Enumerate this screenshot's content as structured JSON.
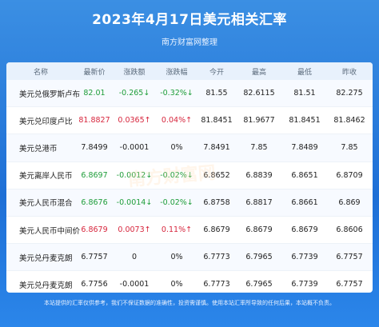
{
  "title": "2023年4月17日美元相关汇率",
  "subtitle": "南方财富网整理",
  "columns": [
    "名称",
    "最新价",
    "涨跌额",
    "涨跌幅",
    "今开",
    "最高",
    "最低",
    "昨收"
  ],
  "rows": [
    {
      "name": "美元兑俄罗斯卢布",
      "last": "82.01",
      "chg": "-0.265↓",
      "pct": "-0.32%↓",
      "open": "81.55",
      "high": "82.6115",
      "low": "81.51",
      "prev": "82.275",
      "trend": "down"
    },
    {
      "name": "美元兑印度卢比",
      "last": "81.8827",
      "chg": "0.0365↑",
      "pct": "0.04%↑",
      "open": "81.8451",
      "high": "81.9677",
      "low": "81.8451",
      "prev": "81.8462",
      "trend": "up"
    },
    {
      "name": "美元兑港币",
      "last": "7.8499",
      "chg": "-0.0001",
      "pct": "0%",
      "open": "7.8491",
      "high": "7.85",
      "low": "7.8489",
      "prev": "7.85",
      "trend": "flat"
    },
    {
      "name": "美元离岸人民币",
      "last": "6.8697",
      "chg": "-0.0012↓",
      "pct": "-0.02%↓",
      "open": "6.8652",
      "high": "6.8839",
      "low": "6.8651",
      "prev": "6.8709",
      "trend": "down"
    },
    {
      "name": "美元人民币混合",
      "last": "6.8676",
      "chg": "-0.0014↓",
      "pct": "-0.02%↓",
      "open": "6.8758",
      "high": "6.8817",
      "low": "6.8661",
      "prev": "6.869",
      "trend": "down"
    },
    {
      "name": "美元人民币中间价",
      "last": "6.8679",
      "chg": "0.0073↑",
      "pct": "0.11%↑",
      "open": "6.8679",
      "high": "6.8679",
      "low": "6.8679",
      "prev": "6.8606",
      "trend": "up"
    },
    {
      "name": "美元兑丹麦克朗",
      "last": "6.7757",
      "chg": "0",
      "pct": "0%",
      "open": "6.7773",
      "high": "6.7965",
      "low": "6.7739",
      "prev": "6.7757",
      "trend": "flat"
    },
    {
      "name": "美元兑丹麦克朗",
      "last": "6.7756",
      "chg": "-0.0001",
      "pct": "0%",
      "open": "6.7773",
      "high": "6.7965",
      "low": "6.7739",
      "prev": "6.7757",
      "trend": "flat"
    }
  ],
  "footer": "本站提供的汇率仅供参考，我们不保证数据的准确性，投资需谨慎。使用本站汇率所导致的任何后果，本站概不负责。",
  "watermark": "南方财富网"
}
